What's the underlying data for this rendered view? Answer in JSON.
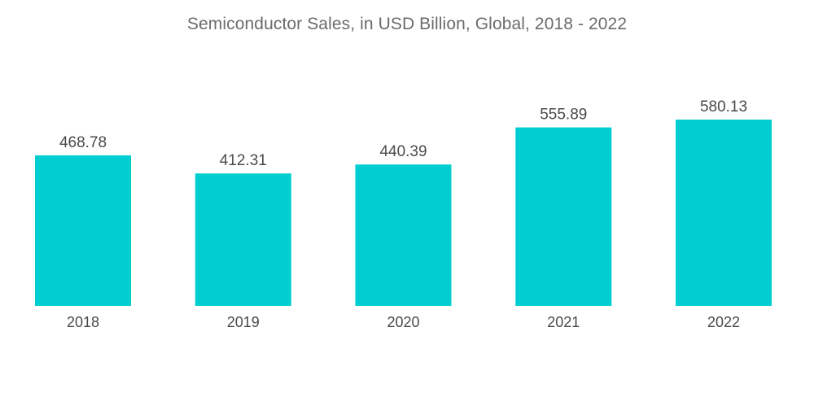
{
  "chart_data": {
    "type": "bar",
    "title": "Semiconductor Sales, in USD Billion, Global, 2018 - 2022",
    "categories": [
      "2018",
      "2019",
      "2020",
      "2021",
      "2022"
    ],
    "values": [
      468.78,
      412.31,
      440.39,
      555.89,
      580.13
    ],
    "value_labels": [
      "468.78",
      "412.31",
      "440.39",
      "555.89",
      "580.13"
    ],
    "xlabel": "",
    "ylabel": "",
    "ylim": [
      0,
      580.13
    ],
    "grid": false,
    "legend": "none",
    "bar_color": "#00CED1"
  }
}
